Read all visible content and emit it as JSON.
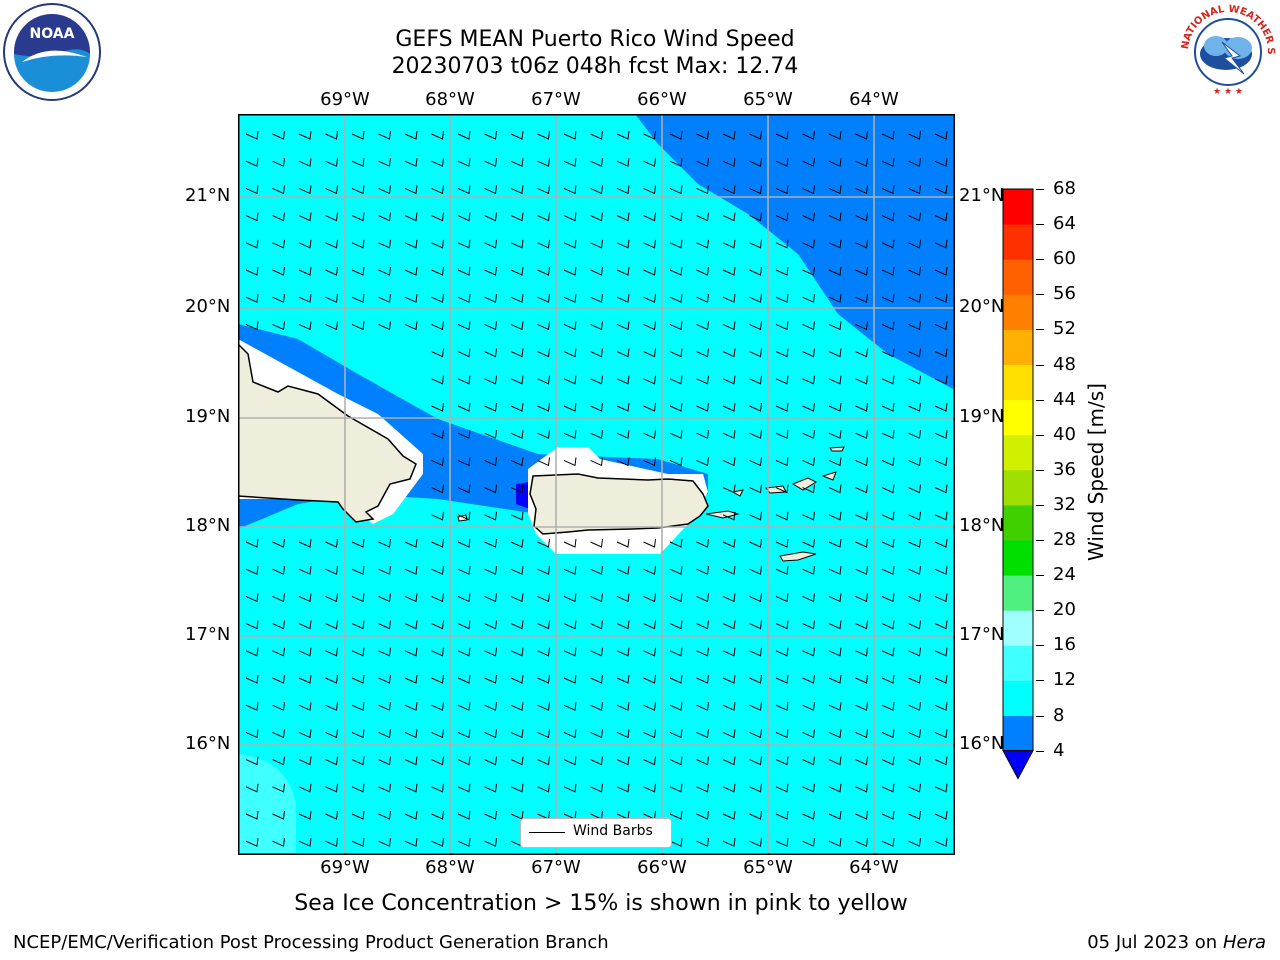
{
  "title": {
    "line1": "GEFS MEAN Puerto Rico Wind Speed",
    "line2": "20230703 t06z 048h fcst   Max: 12.74"
  },
  "logos": {
    "left": "noaa-logo",
    "right": "nws-logo",
    "nws_text": "NATIONAL WEATHER SERVICE"
  },
  "map": {
    "lon_labels": [
      "69°W",
      "68°W",
      "67°W",
      "66°W",
      "65°W",
      "64°W"
    ],
    "lat_labels": [
      "21°N",
      "20°N",
      "19°N",
      "18°N",
      "17°N",
      "16°N"
    ]
  },
  "colorbar": {
    "label": "Wind Speed [m/s]",
    "ticks": [
      "68",
      "64",
      "60",
      "56",
      "52",
      "48",
      "44",
      "40",
      "36",
      "32",
      "28",
      "24",
      "20",
      "16",
      "12",
      "8",
      "4"
    ],
    "colors": [
      "#0000ff",
      "#0080ff",
      "#00ffff",
      "#40ffff",
      "#a0ffff",
      "#50f080",
      "#00e000",
      "#40d000",
      "#a0e000",
      "#d0f000",
      "#ffff00",
      "#ffe000",
      "#ffb000",
      "#ff8000",
      "#ff6000",
      "#ff3000",
      "#ff0000"
    ]
  },
  "legend": {
    "label": "Wind Barbs"
  },
  "note": "Sea Ice Concentration > 15% is shown in pink to yellow",
  "footer": {
    "left": "NCEP/EMC/Verification Post Processing Product Generation Branch",
    "date": "05 Jul 2023 on ",
    "machine": "Hera"
  }
}
